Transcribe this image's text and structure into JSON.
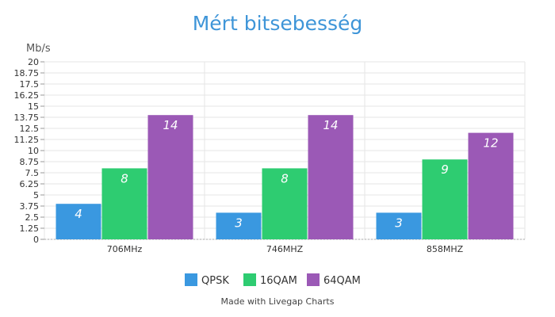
{
  "chart_data": {
    "type": "bar",
    "title": "Mért bitsebesség",
    "ylabel": "Mb/s",
    "xlabel": "",
    "categories": [
      "706MHz",
      "746MHZ",
      "858MHZ"
    ],
    "series": [
      {
        "name": "QPSK",
        "color": "#3a98e0",
        "values": [
          4,
          3,
          3
        ]
      },
      {
        "name": "16QAM",
        "color": "#2ecc71",
        "values": [
          8,
          8,
          9
        ]
      },
      {
        "name": "64QAM",
        "color": "#9b59b6",
        "values": [
          14,
          14,
          12
        ]
      }
    ],
    "ylim": [
      0,
      20
    ],
    "yticks": [
      "0",
      "1.25",
      "2.5",
      "3.75",
      "5",
      "6.25",
      "7.5",
      "8.75",
      "10",
      "11.25",
      "12.5",
      "13.75",
      "15",
      "16.25",
      "17.5",
      "18.75",
      "20"
    ],
    "grid": true,
    "legend_position": "bottom"
  },
  "footer": "Made with Livegap Charts"
}
